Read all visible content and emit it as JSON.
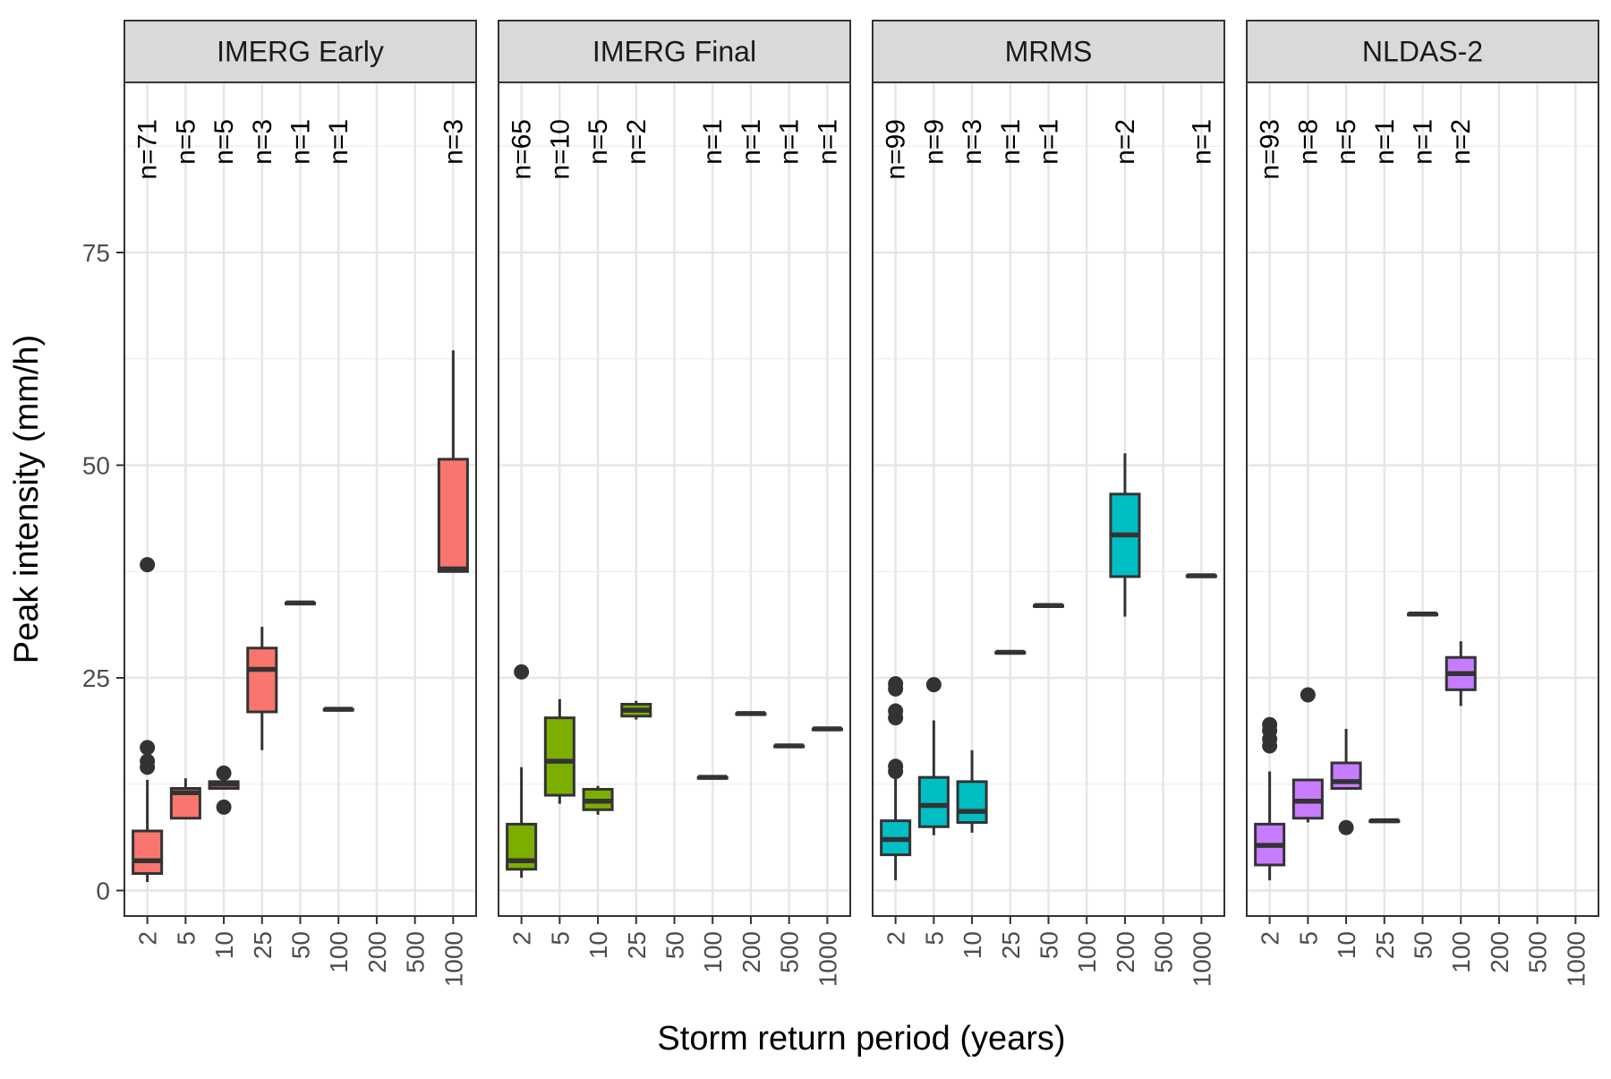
{
  "chart_data": {
    "type": "boxplot",
    "ylabel": "Peak intensity (mm/h)",
    "xlabel": "Storm return period (years)",
    "ylim": [
      -3,
      95
    ],
    "yticks": [
      0,
      25,
      50,
      75
    ],
    "categories": [
      "2",
      "5",
      "10",
      "25",
      "50",
      "100",
      "200",
      "500",
      "1000"
    ],
    "grid": true,
    "colors": {
      "IMERG Early": "#F8766D",
      "IMERG Final": "#7CAE00",
      "MRMS": "#00BFC4",
      "NLDAS-2": "#C77CFF"
    },
    "panels": [
      {
        "name": "IMERG Early",
        "color": "#F8766D",
        "boxes": [
          {
            "x": "2",
            "n": "n=71",
            "whisker_low": 1,
            "q1": 2,
            "median": 3.5,
            "q3": 7,
            "whisker_high": 13,
            "outliers": [
              14.5,
              15.2,
              16.8,
              38.3
            ]
          },
          {
            "x": "5",
            "n": "n=5",
            "whisker_low": 8.5,
            "q1": 8.5,
            "median": 11.5,
            "q3": 12,
            "whisker_high": 13.2,
            "outliers": []
          },
          {
            "x": "10",
            "n": "n=5",
            "whisker_low": 12,
            "q1": 12,
            "median": 12.5,
            "q3": 12.8,
            "whisker_high": 13,
            "outliers": [
              9.8,
              13.8
            ]
          },
          {
            "x": "25",
            "n": "n=3",
            "whisker_low": 16.5,
            "q1": 21,
            "median": 26,
            "q3": 28.5,
            "whisker_high": 31,
            "outliers": []
          },
          {
            "x": "50",
            "n": "n=1",
            "whisker_low": 33.8,
            "q1": 33.8,
            "median": 33.8,
            "q3": 33.8,
            "whisker_high": 33.8,
            "outliers": []
          },
          {
            "x": "100",
            "n": "n=1",
            "whisker_low": 21.3,
            "q1": 21.3,
            "median": 21.3,
            "q3": 21.3,
            "whisker_high": 21.3,
            "outliers": []
          },
          {
            "x": "1000",
            "n": "n=3",
            "whisker_low": 37.5,
            "q1": 37.5,
            "median": 37.8,
            "q3": 50.7,
            "whisker_high": 63.5,
            "outliers": []
          }
        ]
      },
      {
        "name": "IMERG Final",
        "color": "#7CAE00",
        "boxes": [
          {
            "x": "2",
            "n": "n=65",
            "whisker_low": 1.5,
            "q1": 2.5,
            "median": 3.5,
            "q3": 7.8,
            "whisker_high": 14.5,
            "outliers": [
              25.7
            ]
          },
          {
            "x": "5",
            "n": "n=10",
            "whisker_low": 10.2,
            "q1": 11.2,
            "median": 15.2,
            "q3": 20.3,
            "whisker_high": 22.5,
            "outliers": []
          },
          {
            "x": "10",
            "n": "n=5",
            "whisker_low": 8.9,
            "q1": 9.5,
            "median": 10.5,
            "q3": 11.9,
            "whisker_high": 12.3,
            "outliers": []
          },
          {
            "x": "25",
            "n": "n=2",
            "whisker_low": 20.1,
            "q1": 20.5,
            "median": 21.2,
            "q3": 21.9,
            "whisker_high": 22.3,
            "outliers": []
          },
          {
            "x": "100",
            "n": "n=1",
            "whisker_low": 13.3,
            "q1": 13.3,
            "median": 13.3,
            "q3": 13.3,
            "whisker_high": 13.3,
            "outliers": []
          },
          {
            "x": "200",
            "n": "n=1",
            "whisker_low": 20.8,
            "q1": 20.8,
            "median": 20.8,
            "q3": 20.8,
            "whisker_high": 20.8,
            "outliers": []
          },
          {
            "x": "500",
            "n": "n=1",
            "whisker_low": 17,
            "q1": 17,
            "median": 17,
            "q3": 17,
            "whisker_high": 17,
            "outliers": []
          },
          {
            "x": "1000",
            "n": "n=1",
            "whisker_low": 19,
            "q1": 19,
            "median": 19,
            "q3": 19,
            "whisker_high": 19,
            "outliers": []
          }
        ]
      },
      {
        "name": "MRMS",
        "color": "#00BFC4",
        "boxes": [
          {
            "x": "2",
            "n": "n=99",
            "whisker_low": 1.2,
            "q1": 4.2,
            "median": 6,
            "q3": 8.2,
            "whisker_high": 13.5,
            "outliers": [
              14,
              14.6,
              20.3,
              21.1,
              23.7,
              24.3
            ]
          },
          {
            "x": "5",
            "n": "n=9",
            "whisker_low": 6.5,
            "q1": 7.5,
            "median": 10,
            "q3": 13.3,
            "whisker_high": 20,
            "outliers": [
              24.2
            ]
          },
          {
            "x": "10",
            "n": "n=3",
            "whisker_low": 6.8,
            "q1": 8,
            "median": 9.3,
            "q3": 12.8,
            "whisker_high": 16.5,
            "outliers": []
          },
          {
            "x": "25",
            "n": "n=1",
            "whisker_low": 28,
            "q1": 28,
            "median": 28,
            "q3": 28,
            "whisker_high": 28,
            "outliers": []
          },
          {
            "x": "50",
            "n": "n=1",
            "whisker_low": 33.5,
            "q1": 33.5,
            "median": 33.5,
            "q3": 33.5,
            "whisker_high": 33.5,
            "outliers": []
          },
          {
            "x": "200",
            "n": "n=2",
            "whisker_low": 32.2,
            "q1": 36.9,
            "median": 41.8,
            "q3": 46.6,
            "whisker_high": 51.4,
            "outliers": []
          },
          {
            "x": "1000",
            "n": "n=1",
            "whisker_low": 37,
            "q1": 37,
            "median": 37,
            "q3": 37,
            "whisker_high": 37,
            "outliers": []
          }
        ]
      },
      {
        "name": "NLDAS-2",
        "color": "#C77CFF",
        "boxes": [
          {
            "x": "2",
            "n": "n=93",
            "whisker_low": 1.2,
            "q1": 3,
            "median": 5.3,
            "q3": 7.8,
            "whisker_high": 14,
            "outliers": [
              17,
              17.8,
              18.8,
              19.5
            ]
          },
          {
            "x": "5",
            "n": "n=8",
            "whisker_low": 8,
            "q1": 8.5,
            "median": 10.5,
            "q3": 13,
            "whisker_high": 13,
            "outliers": [
              23
            ]
          },
          {
            "x": "10",
            "n": "n=5",
            "whisker_low": 12,
            "q1": 12,
            "median": 12.8,
            "q3": 15,
            "whisker_high": 19,
            "outliers": [
              7.4
            ]
          },
          {
            "x": "25",
            "n": "n=1",
            "whisker_low": 8.2,
            "q1": 8.2,
            "median": 8.2,
            "q3": 8.2,
            "whisker_high": 8.2,
            "outliers": []
          },
          {
            "x": "50",
            "n": "n=1",
            "whisker_low": 32.5,
            "q1": 32.5,
            "median": 32.5,
            "q3": 32.5,
            "whisker_high": 32.5,
            "outliers": []
          },
          {
            "x": "100",
            "n": "n=2",
            "whisker_low": 21.7,
            "q1": 23.6,
            "median": 25.5,
            "q3": 27.4,
            "whisker_high": 29.3,
            "outliers": []
          }
        ]
      }
    ]
  }
}
